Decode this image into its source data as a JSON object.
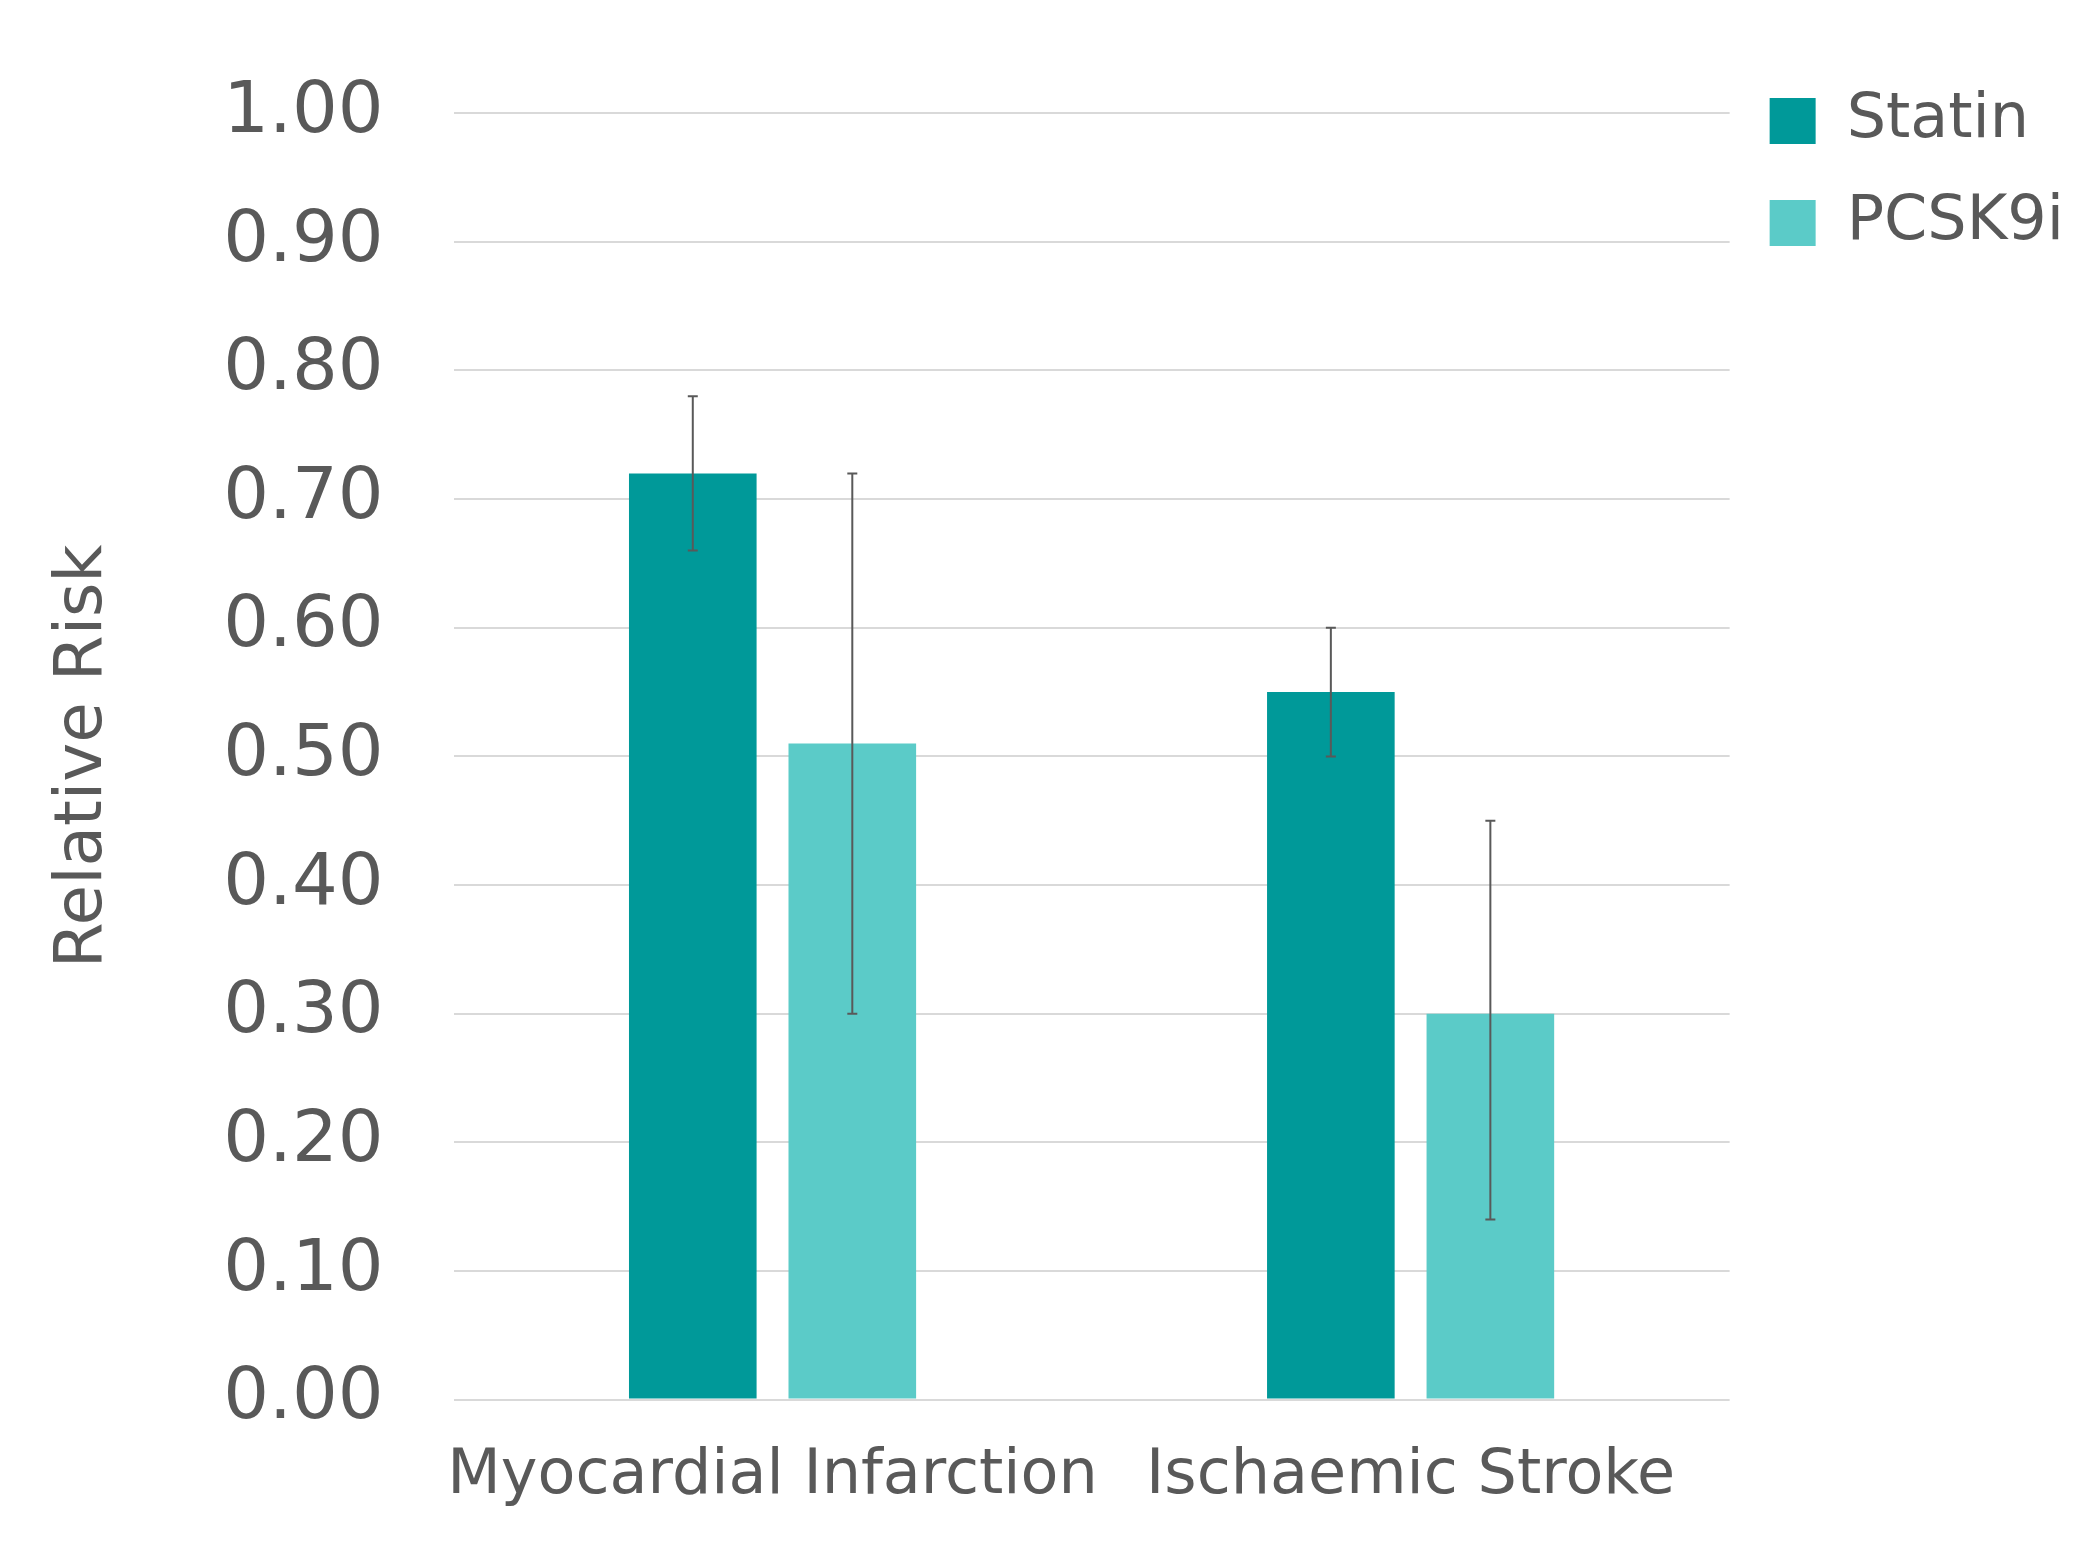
{
  "chart_data": {
    "type": "bar",
    "ylabel": "Relative Risk",
    "categories": [
      "Myocardial Infarction",
      "Ischaemic Stroke"
    ],
    "series": [
      {
        "name": "Statin",
        "color": "#009999",
        "values": [
          0.72,
          0.55
        ],
        "errors": [
          [
            0.66,
            0.78
          ],
          [
            0.5,
            0.6
          ]
        ]
      },
      {
        "name": "PCSK9i",
        "color": "#5bcbc8",
        "values": [
          0.51,
          0.3
        ],
        "errors": [
          [
            0.3,
            0.72
          ],
          [
            0.14,
            0.45
          ]
        ]
      }
    ],
    "ylim": [
      0,
      1
    ],
    "yticks": [
      {
        "value": 0,
        "label": "0.00"
      },
      {
        "value": 0.1,
        "label": "0.10"
      },
      {
        "value": 0.2,
        "label": "0.20"
      },
      {
        "value": 0.3,
        "label": "0.30"
      },
      {
        "value": 0.4,
        "label": "0.40"
      },
      {
        "value": 0.5,
        "label": "0.50"
      },
      {
        "value": 0.6,
        "label": "0.60"
      },
      {
        "value": 0.7,
        "label": "0.70"
      },
      {
        "value": 0.8,
        "label": "0.80"
      },
      {
        "value": 0.9,
        "label": "0.90"
      },
      {
        "value": 1,
        "label": "1.00"
      }
    ],
    "grid": "y",
    "legend": "top right"
  }
}
